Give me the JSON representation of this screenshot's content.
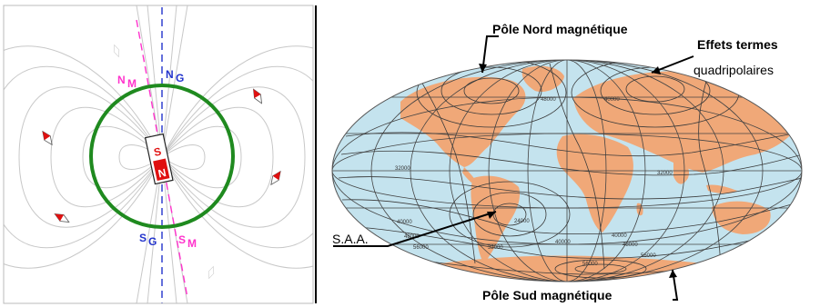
{
  "dipole_panel": {
    "labels": {
      "n_m": "N",
      "n_m_sub": "M",
      "n_g": "N",
      "n_g_sub": "G",
      "s_g": "S",
      "s_g_sub": "G",
      "s_m": "S",
      "s_m_sub": "M",
      "magnet_s": "S",
      "magnet_n": "N"
    },
    "colors": {
      "geographic_axis": "#2233cc",
      "magnetic_axis": "#ff33cc",
      "equator_circle": "#1f8a1f",
      "field_lines": "#c8c8c8",
      "magnet_red": "#e01010"
    },
    "compass_count": 6
  },
  "map_panel": {
    "labels": {
      "north_pole": "Pôle Nord magnétique",
      "effects_line1": "Effets termes",
      "effects_line2": "quadripolaires",
      "saa": "S.A.A.",
      "south_pole": "Pôle Sud magnétique"
    },
    "contour_labels": [
      "48000",
      "40000",
      "32000",
      "40000",
      "48000",
      "56000",
      "24000",
      "32000",
      "40000",
      "48000",
      "56000",
      "32000",
      "40000",
      "56000"
    ],
    "colors": {
      "ocean": "#c4e3ee",
      "land": "#f0a878",
      "contours": "#3a3a3a",
      "graticule": "#444444"
    }
  }
}
